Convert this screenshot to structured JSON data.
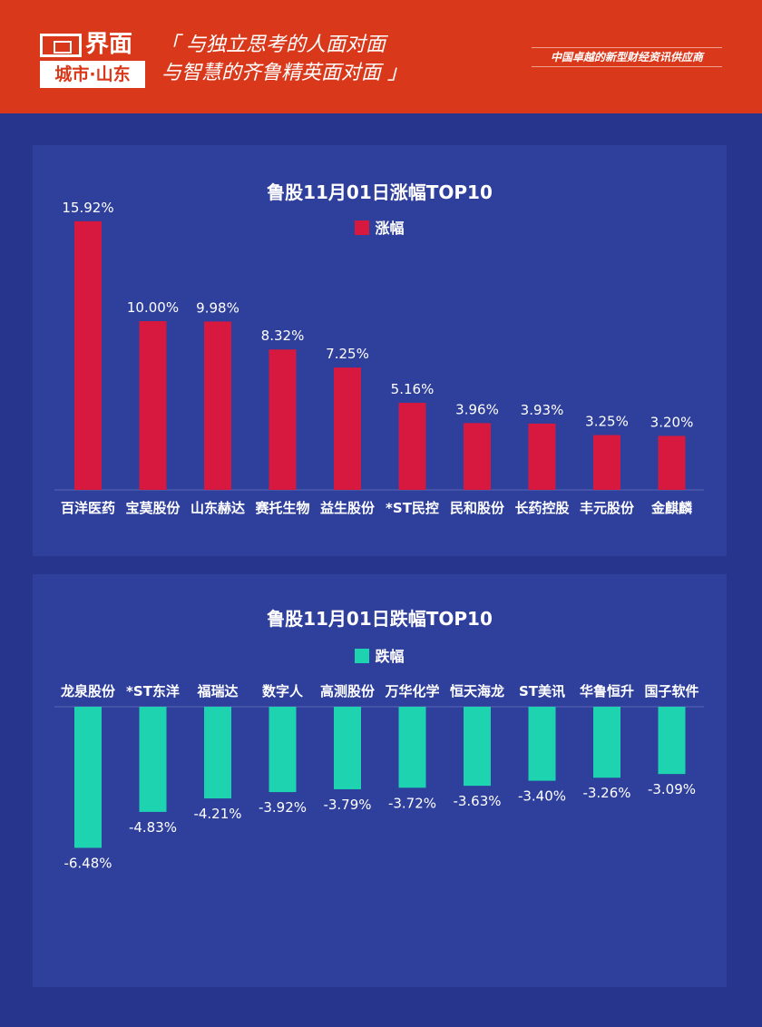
{
  "header": {
    "logo_main": "界面",
    "logo_sub": "城市·山东",
    "slogan_line1": "「 与独立思考的人面对面",
    "slogan_line2": "与智慧的齐鲁精英面对面 」",
    "tagline": "中国卓越的新型财经资讯供应商",
    "bg_color": "#d9381a"
  },
  "chart_data": [
    {
      "type": "bar",
      "title": "鲁股11月01日涨幅TOP10",
      "legend": "涨幅",
      "legend_position": "top",
      "color": "#d7193f",
      "categories": [
        "百洋医药",
        "宝莫股份",
        "山东赫达",
        "赛托生物",
        "益生股份",
        "*ST民控",
        "民和股份",
        "长药控股",
        "丰元股份",
        "金麒麟"
      ],
      "values": [
        15.92,
        10.0,
        9.98,
        8.32,
        7.25,
        5.16,
        3.96,
        3.93,
        3.25,
        3.2
      ],
      "labels": [
        "15.92%",
        "10.00%",
        "9.98%",
        "8.32%",
        "7.25%",
        "5.16%",
        "3.96%",
        "3.93%",
        "3.25%",
        "3.20%"
      ],
      "grid": false
    },
    {
      "type": "bar",
      "title": "鲁股11月01日跌幅TOP10",
      "legend": "跌幅",
      "legend_position": "top",
      "color": "#1dd3b0",
      "categories": [
        "龙泉股份",
        "*ST东洋",
        "福瑞达",
        "数字人",
        "高测股份",
        "万华化学",
        "恒天海龙",
        "ST美讯",
        "华鲁恒升",
        "国子软件"
      ],
      "values": [
        -6.48,
        -4.83,
        -4.21,
        -3.92,
        -3.79,
        -3.72,
        -3.63,
        -3.4,
        -3.26,
        -3.09
      ],
      "labels": [
        "-6.48%",
        "-4.83%",
        "-4.21%",
        "-3.92%",
        "-3.79%",
        "-3.72%",
        "-3.63%",
        "-3.40%",
        "-3.26%",
        "-3.09%"
      ],
      "grid": false
    }
  ]
}
